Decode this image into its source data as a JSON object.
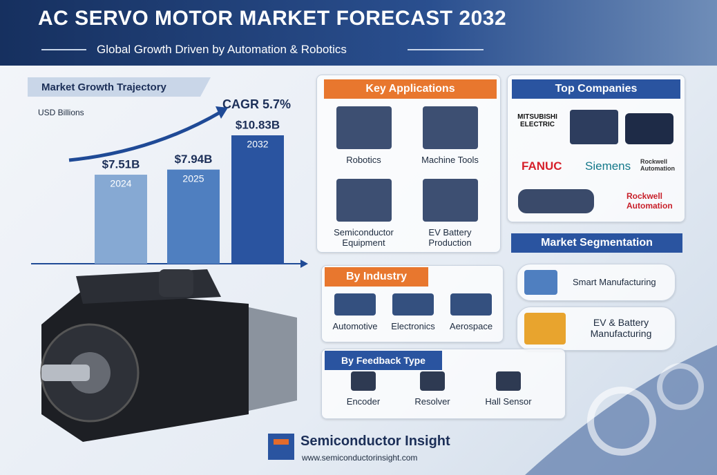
{
  "header": {
    "title": "AC SERVO MOTOR MARKET FORECAST 2032",
    "subtitle": "Global Growth Driven by Automation & Robotics"
  },
  "chart_data": {
    "type": "bar",
    "title": "Market Growth Trajectory",
    "y_label": "USD Billions",
    "annotation": "CAGR 5.7%",
    "categories": [
      "2024",
      "2025",
      "2032"
    ],
    "values": [
      7.51,
      7.94,
      10.83
    ],
    "value_labels": [
      "$7.51B",
      "$7.94B",
      "$10.83B"
    ],
    "colors": [
      "#86a9d3",
      "#4f7fc0",
      "#2a54a0"
    ]
  },
  "key_applications": {
    "title": "Key Applications",
    "items": [
      "Robotics",
      "Machine Tools",
      "Semiconductor Equipment",
      "EV Battery Production"
    ]
  },
  "top_companies": {
    "title": "Top Companies",
    "logos": [
      "MITSUBISHI ELECTRIC",
      "FANUC",
      "Siemens",
      "Rockwell Automation",
      "Rockwell Automation"
    ]
  },
  "market_segmentation": {
    "title": "Market Segmentation",
    "items": [
      "Smart Manufacturing",
      "EV & Battery Manufacturing"
    ]
  },
  "by_industry": {
    "title": "By Industry",
    "items": [
      "Automotive",
      "Electronics",
      "Aerospace"
    ]
  },
  "by_feedback_type": {
    "title": "By Feedback Type",
    "items": [
      "Encoder",
      "Resolver",
      "Hall Sensor"
    ]
  },
  "footer": {
    "brand": "Semiconductor Insight",
    "url": "www.semiconductorinsight.com"
  }
}
